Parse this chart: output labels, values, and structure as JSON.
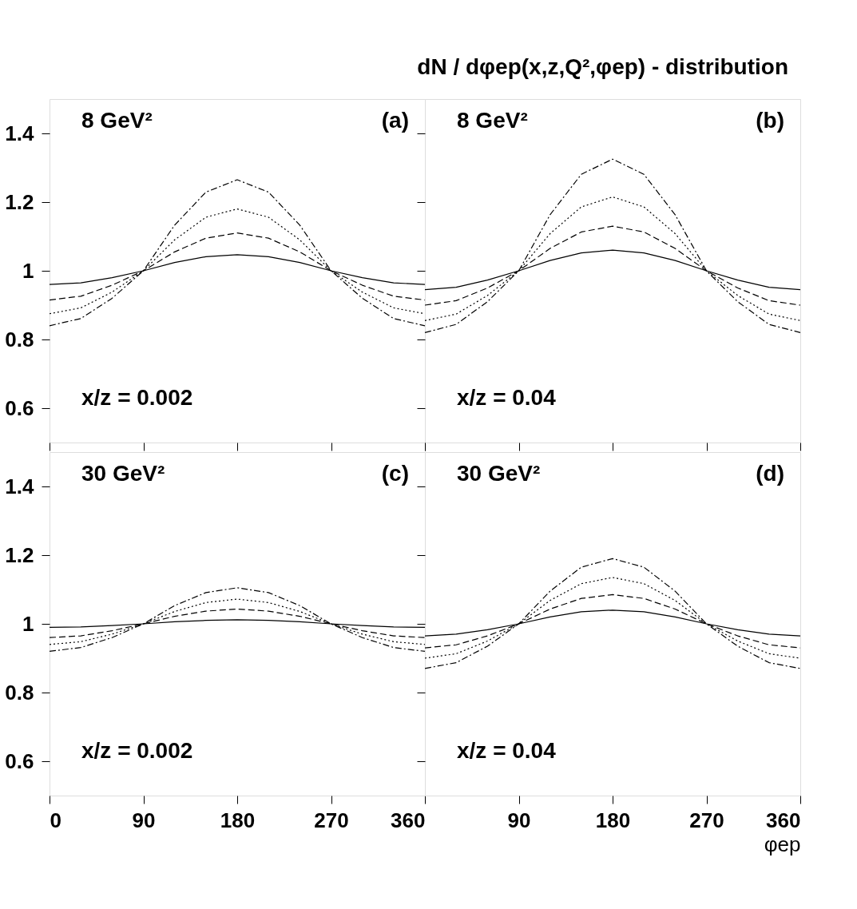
{
  "chart_data": [
    {
      "type": "line",
      "x": [
        0,
        30,
        60,
        90,
        120,
        150,
        180,
        210,
        240,
        270,
        300,
        330,
        360
      ],
      "xlim": [
        0,
        360
      ],
      "xticks": [
        0,
        90,
        180,
        270,
        360
      ],
      "ylim": [
        0.5,
        1.5
      ],
      "yticks": [
        0.6,
        0.8,
        {
          "value": 1,
          "label": "1"
        },
        1.2,
        1.4
      ],
      "tick_labels": "y",
      "grid": false,
      "annotations": [
        "8 GeV²",
        "(a)",
        "x/z = 0.002"
      ],
      "series": [
        {
          "color": "#000000",
          "line_style": "solid",
          "values": [
            0.96,
            0.965,
            0.98,
            1,
            1.024,
            1.041,
            1.047,
            1.041,
            1.024,
            1,
            0.98,
            0.965,
            0.96
          ]
        },
        {
          "color": "#000000",
          "line_style": "dashed",
          "values": [
            0.915,
            0.926,
            0.958,
            1,
            1.055,
            1.095,
            1.11,
            1.095,
            1.055,
            1,
            0.958,
            0.926,
            0.915
          ]
        },
        {
          "color": "#000000",
          "line_style": "dotted",
          "values": [
            0.875,
            0.892,
            0.938,
            1,
            1.09,
            1.156,
            1.18,
            1.156,
            1.09,
            1,
            0.938,
            0.892,
            0.875
          ]
        },
        {
          "color": "#000000",
          "line_style": "dashdot",
          "values": [
            0.84,
            0.861,
            0.92,
            1,
            1.133,
            1.229,
            1.265,
            1.229,
            1.133,
            1,
            0.92,
            0.861,
            0.84
          ]
        }
      ]
    },
    {
      "type": "line",
      "x": [
        0,
        30,
        60,
        90,
        120,
        150,
        180,
        210,
        240,
        270,
        300,
        330,
        360
      ],
      "xlim": [
        0,
        360
      ],
      "xticks": [
        0,
        90,
        180,
        270,
        360
      ],
      "ylim": [
        0.5,
        1.5
      ],
      "yticks": [
        0.6,
        0.8,
        1,
        1.2,
        1.4
      ],
      "tick_labels": false,
      "grid": false,
      "title": "dN / dφep(x,z,Q²,φep) - distribution",
      "annotations": [
        "8 GeV²",
        "(b)",
        "x/z = 0.04"
      ],
      "series": [
        {
          "color": "#000000",
          "line_style": "solid",
          "values": [
            0.945,
            0.952,
            0.973,
            1,
            1.03,
            1.052,
            1.06,
            1.052,
            1.03,
            1,
            0.973,
            0.952,
            0.945
          ]
        },
        {
          "color": "#000000",
          "line_style": "dashed",
          "values": [
            0.9,
            0.913,
            0.95,
            1,
            1.065,
            1.113,
            1.13,
            1.113,
            1.065,
            1,
            0.95,
            0.913,
            0.9
          ]
        },
        {
          "color": "#000000",
          "line_style": "dotted",
          "values": [
            0.855,
            0.874,
            0.928,
            1,
            1.108,
            1.186,
            1.215,
            1.186,
            1.108,
            1,
            0.928,
            0.874,
            0.855
          ]
        },
        {
          "color": "#000000",
          "line_style": "dashdot",
          "values": [
            0.82,
            0.844,
            0.91,
            1,
            1.163,
            1.281,
            1.325,
            1.281,
            1.163,
            1,
            0.91,
            0.844,
            0.82
          ]
        }
      ]
    },
    {
      "type": "line",
      "x": [
        0,
        30,
        60,
        90,
        120,
        150,
        180,
        210,
        240,
        270,
        300,
        330,
        360
      ],
      "xlim": [
        0,
        360
      ],
      "xticks": [
        0,
        90,
        180,
        270,
        360
      ],
      "ylim": [
        0.5,
        1.5
      ],
      "yticks": [
        0.6,
        0.8,
        {
          "value": 1,
          "label": "1"
        },
        1.2,
        1.4
      ],
      "grid": false,
      "annotations": [
        "30 GeV²",
        "(c)",
        "x/z = 0.002"
      ],
      "series": [
        {
          "color": "#000000",
          "line_style": "solid",
          "values": [
            0.99,
            0.991,
            0.995,
            1,
            1.006,
            1.01,
            1.012,
            1.01,
            1.006,
            1,
            0.995,
            0.991,
            0.99
          ]
        },
        {
          "color": "#000000",
          "line_style": "dashed",
          "values": [
            0.96,
            0.965,
            0.98,
            1,
            1.022,
            1.037,
            1.043,
            1.037,
            1.022,
            1,
            0.98,
            0.965,
            0.96
          ]
        },
        {
          "color": "#000000",
          "line_style": "dotted",
          "values": [
            0.94,
            0.948,
            0.97,
            1,
            1.036,
            1.062,
            1.072,
            1.062,
            1.036,
            1,
            0.97,
            0.948,
            0.94
          ]
        },
        {
          "color": "#000000",
          "line_style": "dashdot",
          "values": [
            0.92,
            0.931,
            0.96,
            1,
            1.053,
            1.091,
            1.105,
            1.091,
            1.053,
            1,
            0.96,
            0.931,
            0.92
          ]
        }
      ]
    },
    {
      "type": "line",
      "x": [
        0,
        30,
        60,
        90,
        120,
        150,
        180,
        210,
        240,
        270,
        300,
        330,
        360
      ],
      "xlim": [
        0,
        360
      ],
      "xticks": [
        90,
        180,
        270,
        360
      ],
      "ylim": [
        0.5,
        1.5
      ],
      "yticks": [
        0.6,
        0.8,
        1,
        1.2,
        1.4
      ],
      "tick_labels": "x",
      "xlabel": "φep",
      "grid": false,
      "annotations": [
        "30 GeV²",
        "(d)",
        "x/z = 0.04"
      ],
      "series": [
        {
          "color": "#000000",
          "line_style": "solid",
          "values": [
            0.965,
            0.97,
            0.983,
            1,
            1.02,
            1.035,
            1.04,
            1.035,
            1.02,
            1,
            0.983,
            0.97,
            0.965
          ]
        },
        {
          "color": "#000000",
          "line_style": "dashed",
          "values": [
            0.93,
            0.939,
            0.965,
            1,
            1.043,
            1.074,
            1.085,
            1.074,
            1.043,
            1,
            0.965,
            0.939,
            0.93
          ]
        },
        {
          "color": "#000000",
          "line_style": "dotted",
          "values": [
            0.9,
            0.913,
            0.95,
            1,
            1.068,
            1.117,
            1.135,
            1.117,
            1.068,
            1,
            0.95,
            0.913,
            0.9
          ]
        },
        {
          "color": "#000000",
          "line_style": "dashdot",
          "values": [
            0.87,
            0.887,
            0.935,
            1,
            1.095,
            1.165,
            1.19,
            1.165,
            1.095,
            1,
            0.935,
            0.887,
            0.87
          ]
        }
      ]
    }
  ]
}
